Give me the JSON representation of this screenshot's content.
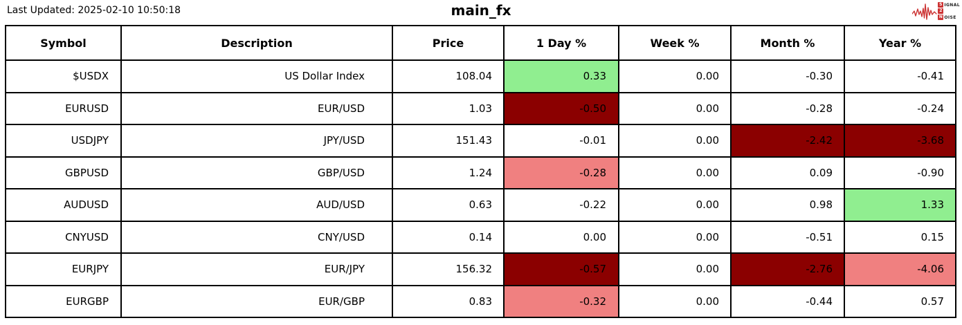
{
  "header": {
    "last_updated": "Last Updated: 2025-02-10 10:50:18",
    "title": "main_fx",
    "logo": {
      "line1_badge": "S",
      "line1_rest": "IGNAL",
      "line2_badge": "2",
      "line2_rest": "",
      "line3_badge": "N",
      "line3_rest": "OISE"
    }
  },
  "colors": {
    "gain": "#90ee90",
    "loss_strong": "#8b0000",
    "loss_mild": "#f08080",
    "neutral": "#ffffff",
    "border": "#000000",
    "logo_red": "#cc3333"
  },
  "chart_data": {
    "type": "table",
    "title": "main_fx",
    "columns": [
      "Symbol",
      "Description",
      "Price",
      "1 Day %",
      "Week %",
      "Month %",
      "Year %"
    ],
    "column_keys": [
      "symbol",
      "description",
      "price",
      "day-pct",
      "week-pct",
      "month-pct",
      "year-pct"
    ],
    "rows": [
      {
        "cells": [
          "$USDX",
          "US Dollar Index",
          "108.04",
          "0.33",
          "0.00",
          "-0.30",
          "-0.41"
        ],
        "bg": [
          "",
          "",
          "",
          "gain",
          "",
          "",
          ""
        ]
      },
      {
        "cells": [
          "EURUSD",
          "EUR/USD",
          "1.03",
          "-0.50",
          "0.00",
          "-0.28",
          "-0.24"
        ],
        "bg": [
          "",
          "",
          "",
          "loss_strong",
          "",
          "",
          ""
        ]
      },
      {
        "cells": [
          "USDJPY",
          "JPY/USD",
          "151.43",
          "-0.01",
          "0.00",
          "-2.42",
          "-3.68"
        ],
        "bg": [
          "",
          "",
          "",
          "",
          "",
          "loss_strong",
          "loss_strong"
        ]
      },
      {
        "cells": [
          "GBPUSD",
          "GBP/USD",
          "1.24",
          "-0.28",
          "0.00",
          "0.09",
          "-0.90"
        ],
        "bg": [
          "",
          "",
          "",
          "loss_mild",
          "",
          "",
          ""
        ]
      },
      {
        "cells": [
          "AUDUSD",
          "AUD/USD",
          "0.63",
          "-0.22",
          "0.00",
          "0.98",
          "1.33"
        ],
        "bg": [
          "",
          "",
          "",
          "",
          "",
          "",
          "gain"
        ]
      },
      {
        "cells": [
          "CNYUSD",
          "CNY/USD",
          "0.14",
          "0.00",
          "0.00",
          "-0.51",
          "0.15"
        ],
        "bg": [
          "",
          "",
          "",
          "",
          "",
          "",
          ""
        ]
      },
      {
        "cells": [
          "EURJPY",
          "EUR/JPY",
          "156.32",
          "-0.57",
          "0.00",
          "-2.76",
          "-4.06"
        ],
        "bg": [
          "",
          "",
          "",
          "loss_strong",
          "",
          "loss_strong",
          "loss_mild"
        ]
      },
      {
        "cells": [
          "EURGBP",
          "EUR/GBP",
          "0.83",
          "-0.32",
          "0.00",
          "-0.44",
          "0.57"
        ],
        "bg": [
          "",
          "",
          "",
          "loss_mild",
          "",
          "",
          ""
        ]
      }
    ]
  }
}
